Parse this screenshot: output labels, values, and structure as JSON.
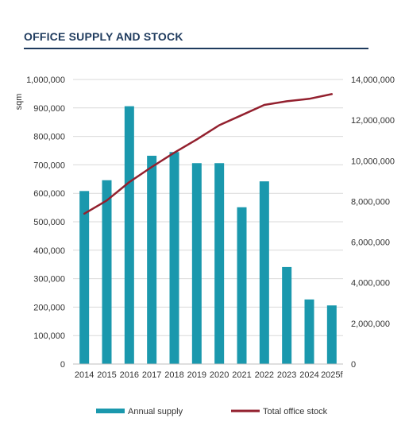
{
  "header": {
    "title": "OFFICE SUPPLY AND STOCK"
  },
  "colors": {
    "bar": "#1a98ad",
    "line": "#93202e",
    "grid": "#d9d9d9",
    "title": "#1f3b5e"
  },
  "chart_data": {
    "type": "bar",
    "categories": [
      "2014",
      "2015",
      "2016",
      "2017",
      "2018",
      "2019",
      "2020",
      "2021",
      "2022",
      "2023",
      "2024",
      "2025f"
    ],
    "series": [
      {
        "name": "Annual supply",
        "type": "bar",
        "axis": "left",
        "values": [
          608000,
          646000,
          906000,
          732000,
          745000,
          706000,
          706000,
          551000,
          642000,
          341000,
          227000,
          206000
        ]
      },
      {
        "name": "Total office stock",
        "type": "line",
        "axis": "right",
        "values": [
          7400000,
          8050000,
          8950000,
          9700000,
          10400000,
          11050000,
          11750000,
          12250000,
          12750000,
          12930000,
          13050000,
          13280000
        ]
      }
    ],
    "ylabel": "sqm",
    "ylim": [
      0,
      1000000
    ],
    "y_ticks": [
      "0",
      "100,000",
      "200,000",
      "300,000",
      "400,000",
      "500,000",
      "600,000",
      "700,000",
      "800,000",
      "900,000",
      "1,000,000"
    ],
    "y2lim": [
      0,
      14000000
    ],
    "y2_ticks": [
      "0",
      "2,000,000",
      "4,000,000",
      "6,000,000",
      "8,000,000",
      "10,000,000",
      "12,000,000",
      "14,000,000"
    ],
    "grid": true,
    "legend_position": "bottom"
  }
}
